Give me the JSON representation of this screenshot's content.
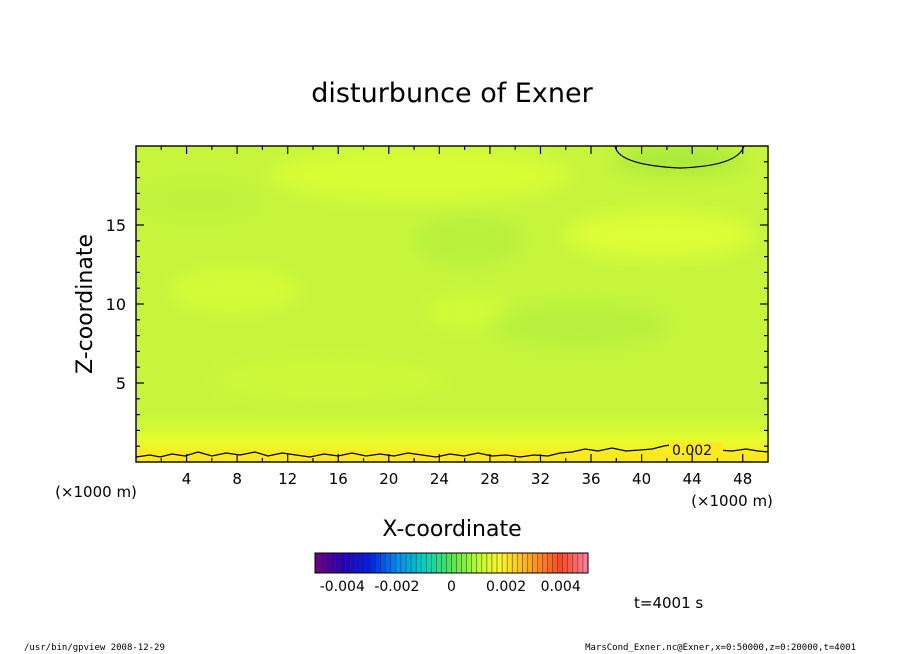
{
  "chart_data": {
    "type": "heatmap",
    "title": "disturbunce of Exner",
    "xlabel": "X-coordinate",
    "ylabel": "Z-coordinate",
    "x_unit": "(×1000 m)",
    "y_unit": "(×1000 m)",
    "xlim": [
      0,
      50
    ],
    "ylim": [
      0,
      20
    ],
    "x_ticks": [
      "4",
      "8",
      "12",
      "16",
      "20",
      "24",
      "28",
      "32",
      "36",
      "40",
      "44",
      "48"
    ],
    "x_tick_values": [
      4,
      8,
      12,
      16,
      20,
      24,
      28,
      32,
      36,
      40,
      44,
      48
    ],
    "y_ticks": [
      "5",
      "10",
      "15"
    ],
    "y_tick_values": [
      5,
      10,
      15
    ],
    "contour_levels": [
      {
        "level": 0.002,
        "label": "0.002"
      }
    ],
    "colorbar": {
      "range": [
        -0.005,
        0.005
      ],
      "tick_labels": [
        "-0.004",
        "-0.002",
        "0",
        "0.002",
        "0.004"
      ],
      "tick_values": [
        -0.004,
        -0.002,
        0,
        0.002,
        0.004
      ]
    },
    "time_label": "t=4001 s"
  },
  "footer": {
    "left": "/usr/bin/gpview   2008-12-29",
    "right": "MarsCond_Exner.nc@Exner,x=0:50000,z=0:20000,t=4001"
  }
}
